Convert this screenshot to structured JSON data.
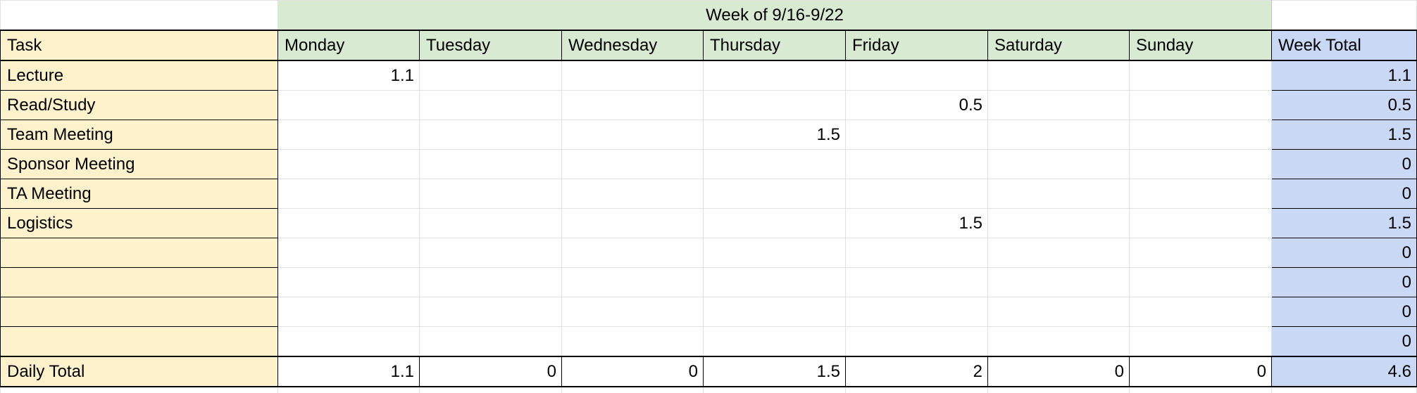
{
  "sheet": {
    "week_banner": "Week of 9/16-9/22",
    "headers": {
      "task": "Task",
      "days": [
        "Monday",
        "Tuesday",
        "Wednesday",
        "Thursday",
        "Friday",
        "Saturday",
        "Sunday"
      ],
      "week_total": "Week Total"
    },
    "rows": [
      {
        "task": "Lecture",
        "values": [
          "1.1",
          "",
          "",
          "",
          "",
          "",
          ""
        ],
        "total": "1.1"
      },
      {
        "task": "Read/Study",
        "values": [
          "",
          "",
          "",
          "",
          "0.5",
          "",
          ""
        ],
        "total": "0.5"
      },
      {
        "task": "Team Meeting",
        "values": [
          "",
          "",
          "",
          "1.5",
          "",
          "",
          ""
        ],
        "total": "1.5"
      },
      {
        "task": "Sponsor Meeting",
        "values": [
          "",
          "",
          "",
          "",
          "",
          "",
          ""
        ],
        "total": "0"
      },
      {
        "task": "TA Meeting",
        "values": [
          "",
          "",
          "",
          "",
          "",
          "",
          ""
        ],
        "total": "0"
      },
      {
        "task": "Logistics",
        "values": [
          "",
          "",
          "",
          "",
          "1.5",
          "",
          ""
        ],
        "total": "1.5"
      },
      {
        "task": "",
        "values": [
          "",
          "",
          "",
          "",
          "",
          "",
          ""
        ],
        "total": "0"
      },
      {
        "task": "",
        "values": [
          "",
          "",
          "",
          "",
          "",
          "",
          ""
        ],
        "total": "0"
      },
      {
        "task": "",
        "values": [
          "",
          "",
          "",
          "",
          "",
          "",
          ""
        ],
        "total": "0"
      },
      {
        "task": "",
        "values": [
          "",
          "",
          "",
          "",
          "",
          "",
          ""
        ],
        "total": "0"
      }
    ],
    "daily_total": {
      "label": "Daily Total",
      "values": [
        "1.1",
        "0",
        "0",
        "1.5",
        "2",
        "0",
        "0"
      ],
      "total": "4.6"
    }
  }
}
